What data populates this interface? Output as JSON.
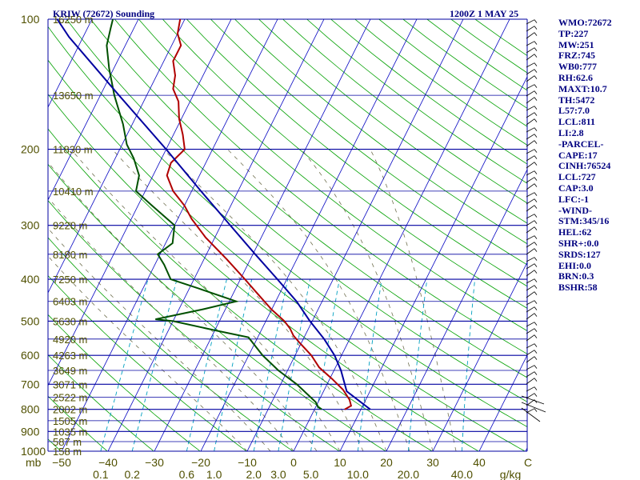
{
  "chart_data": {
    "type": "skew-t sounding",
    "title": "KRIW (72672) Sounding",
    "datetime": "1200Z  1 MAY 25",
    "pressure_axis": {
      "unit_label": "mb",
      "range": [
        1000,
        100
      ],
      "scale": "log",
      "ticks": [
        100,
        200,
        300,
        400,
        500,
        600,
        700,
        800,
        900,
        1000
      ]
    },
    "temperature_axis": {
      "unit": "C",
      "ticks": [
        -50,
        -40,
        -30,
        -20,
        -10,
        0,
        10,
        20,
        30,
        40
      ],
      "unit_label": "C"
    },
    "mixing_ratio_axis": {
      "unit_label": "g/kg",
      "ticks": [
        "0.1",
        "0.2",
        "0.6",
        "1.0",
        "2.0",
        "3.0",
        "5.0",
        "10.0",
        "20.0",
        "40.0"
      ],
      "values": [
        0.1,
        0.2,
        0.6,
        1.0,
        2.0,
        3.0,
        5.0,
        10.0,
        20.0,
        40.0
      ]
    },
    "height_labels": [
      {
        "p": 100,
        "text": "16250 m"
      },
      {
        "p": 150,
        "text": "13650 m"
      },
      {
        "p": 200,
        "text": "11830 m"
      },
      {
        "p": 250,
        "text": "10410 m"
      },
      {
        "p": 300,
        "text": "9220 m"
      },
      {
        "p": 350,
        "text": "8180 m"
      },
      {
        "p": 400,
        "text": "7250 m"
      },
      {
        "p": 450,
        "text": "6403 m"
      },
      {
        "p": 500,
        "text": "5630 m"
      },
      {
        "p": 550,
        "text": "4920 m"
      },
      {
        "p": 600,
        "text": "4263 m"
      },
      {
        "p": 650,
        "text": "3649 m"
      },
      {
        "p": 700,
        "text": "3071 m"
      },
      {
        "p": 750,
        "text": "2522 m"
      },
      {
        "p": 800,
        "text": "2002 m"
      },
      {
        "p": 850,
        "text": "1505 m"
      },
      {
        "p": 900,
        "text": "1035 m"
      },
      {
        "p": 950,
        "text": "587 m"
      },
      {
        "p": 1000,
        "text": "158 m"
      }
    ],
    "series": [
      {
        "name": "",
        "role": "temperature",
        "color": "#b00000",
        "points": [
          {
            "p": 800,
            "t": 6.5
          },
          {
            "p": 785,
            "t": 7.5
          },
          {
            "p": 760,
            "t": 6.5
          },
          {
            "p": 720,
            "t": 4.0
          },
          {
            "p": 680,
            "t": 0.5
          },
          {
            "p": 640,
            "t": -3.5
          },
          {
            "p": 600,
            "t": -6.5
          },
          {
            "p": 560,
            "t": -10.5
          },
          {
            "p": 540,
            "t": -12.5
          },
          {
            "p": 520,
            "t": -14.0
          },
          {
            "p": 500,
            "t": -16.0
          },
          {
            "p": 470,
            "t": -20.0
          },
          {
            "p": 430,
            "t": -25.0
          },
          {
            "p": 400,
            "t": -29.0
          },
          {
            "p": 360,
            "t": -35.0
          },
          {
            "p": 320,
            "t": -42.0
          },
          {
            "p": 290,
            "t": -47.0
          },
          {
            "p": 270,
            "t": -50.0
          },
          {
            "p": 250,
            "t": -54.0
          },
          {
            "p": 230,
            "t": -57.0
          },
          {
            "p": 215,
            "t": -57.5
          },
          {
            "p": 200,
            "t": -56.0
          },
          {
            "p": 185,
            "t": -58.0
          },
          {
            "p": 170,
            "t": -60.5
          },
          {
            "p": 155,
            "t": -62.5
          },
          {
            "p": 145,
            "t": -65.0
          },
          {
            "p": 135,
            "t": -66.0
          },
          {
            "p": 125,
            "t": -68.0
          },
          {
            "p": 115,
            "t": -68.0
          },
          {
            "p": 108,
            "t": -70.0
          },
          {
            "p": 100,
            "t": -71.0
          }
        ]
      },
      {
        "name": "",
        "role": "dewpoint",
        "color": "#005000",
        "points": [
          {
            "p": 800,
            "t": 1.5
          },
          {
            "p": 790,
            "t": 0.5
          },
          {
            "p": 770,
            "t": -0.5
          },
          {
            "p": 740,
            "t": -3.0
          },
          {
            "p": 700,
            "t": -6.5
          },
          {
            "p": 650,
            "t": -12.0
          },
          {
            "p": 600,
            "t": -17.0
          },
          {
            "p": 545,
            "t": -22.0
          },
          {
            "p": 525,
            "t": -30.0
          },
          {
            "p": 500,
            "t": -40.0
          },
          {
            "p": 495,
            "t": -44.0
          },
          {
            "p": 470,
            "t": -35.0
          },
          {
            "p": 450,
            "t": -28.5
          },
          {
            "p": 420,
            "t": -38.0
          },
          {
            "p": 400,
            "t": -45.0
          },
          {
            "p": 370,
            "t": -48.0
          },
          {
            "p": 350,
            "t": -50.5
          },
          {
            "p": 330,
            "t": -48.5
          },
          {
            "p": 300,
            "t": -50.0
          },
          {
            "p": 270,
            "t": -57.0
          },
          {
            "p": 250,
            "t": -62.0
          },
          {
            "p": 230,
            "t": -63.0
          },
          {
            "p": 210,
            "t": -66.0
          },
          {
            "p": 195,
            "t": -69.0
          },
          {
            "p": 175,
            "t": -72.0
          },
          {
            "p": 150,
            "t": -77.0
          },
          {
            "p": 130,
            "t": -81.0
          },
          {
            "p": 115,
            "t": -84.0
          },
          {
            "p": 105,
            "t": -85.0
          },
          {
            "p": 100,
            "t": -85.5
          }
        ]
      },
      {
        "name": "",
        "role": "parcel",
        "color": "#0000a0",
        "points": [
          {
            "p": 800,
            "t": 12.0
          },
          {
            "p": 727,
            "t": 5.0
          },
          {
            "p": 650,
            "t": 1.5
          },
          {
            "p": 600,
            "t": -1.5
          },
          {
            "p": 550,
            "t": -5.5
          },
          {
            "p": 500,
            "t": -10.5
          },
          {
            "p": 450,
            "t": -15.5
          },
          {
            "p": 400,
            "t": -22.0
          },
          {
            "p": 350,
            "t": -29.5
          },
          {
            "p": 300,
            "t": -38.0
          },
          {
            "p": 250,
            "t": -48.0
          },
          {
            "p": 200,
            "t": -60.0
          },
          {
            "p": 150,
            "t": -76.0
          },
          {
            "p": 110,
            "t": -93.0
          },
          {
            "p": 100,
            "t": -97.5
          }
        ]
      }
    ],
    "wind_barbs_side": "right",
    "stats": [
      "WMO:72672",
      "TP:227",
      "MW:251",
      "FRZ:745",
      "WB0:777",
      "RH:62.6",
      "MAXT:10.7",
      "TH:5472",
      "L57:7.0",
      "LCL:811",
      "LI:2.8",
      "-PARCEL-",
      "CAPE:17",
      "CINH:76524",
      "LCL:727",
      "CAP:3.0",
      "LFC:-1",
      "-WIND-",
      "STM:345/16",
      "HEL:62",
      "SHR+:0.0",
      "SRDS:127",
      "EHI:0.0",
      "BRN:0.3",
      "BSHR:58"
    ],
    "colors": {
      "isobar": "#0000a0",
      "isotherm": "#0000c0",
      "dry_adiabat": "#00a000",
      "mixing_ratio": "#00a0c0",
      "moist_adiabat": "#707050",
      "axis_text": "#505000",
      "title": "#000080"
    }
  }
}
